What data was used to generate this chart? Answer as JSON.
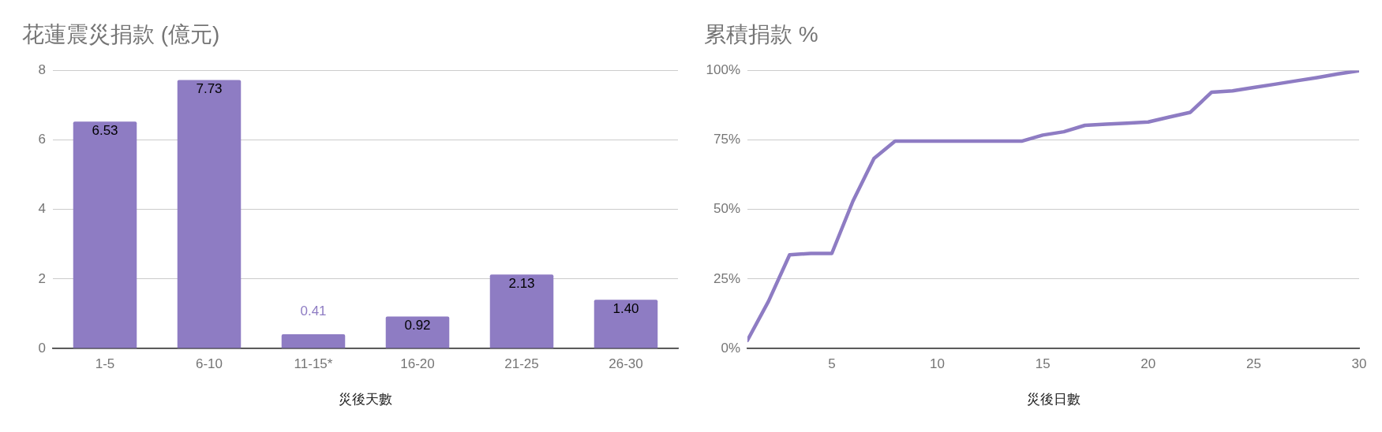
{
  "chart_data": [
    {
      "type": "bar",
      "title": "花蓮震災捐款 (億元)",
      "xlabel": "災後天數",
      "categories": [
        "1-5",
        "6-10",
        "11-15*",
        "16-20",
        "21-25",
        "26-30"
      ],
      "values": [
        6.53,
        7.73,
        0.41,
        0.92,
        2.13,
        1.4
      ],
      "value_labels": [
        "6.53",
        "7.73",
        "0.41",
        "0.92",
        "2.13",
        "1.40"
      ],
      "color": "#8e7cc3",
      "ylim": [
        0,
        8
      ],
      "yticks": [
        0,
        2,
        4,
        6,
        8
      ],
      "grid": "y"
    },
    {
      "type": "line",
      "title": "累積捐款 %",
      "xlabel": "災後日數",
      "x": [
        1,
        2,
        3,
        4,
        5,
        6,
        7,
        8,
        9,
        10,
        11,
        12,
        13,
        14,
        15,
        16,
        17,
        18,
        19,
        20,
        21,
        22,
        23,
        24,
        25,
        26,
        27,
        28,
        29,
        30
      ],
      "values": [
        2.9,
        17,
        33.7,
        34.2,
        34.2,
        53,
        68.4,
        74.6,
        74.6,
        74.6,
        74.6,
        74.6,
        74.6,
        74.6,
        76.8,
        78,
        80.3,
        80.7,
        81.1,
        81.5,
        83.3,
        85,
        92.2,
        92.7,
        93.9,
        95.1,
        96.3,
        97.5,
        98.8,
        100
      ],
      "color": "#8e7cc3",
      "xlim": [
        1,
        30
      ],
      "xticks": [
        5,
        10,
        15,
        20,
        25,
        30
      ],
      "ylim": [
        0,
        100
      ],
      "yticks": [
        {
          "value": 0,
          "label": "0%"
        },
        {
          "value": 25,
          "label": "25%"
        },
        {
          "value": 50,
          "label": "50%"
        },
        {
          "value": 75,
          "label": "75%"
        },
        {
          "value": 100,
          "label": "100%"
        }
      ],
      "grid": "y",
      "marker": "none"
    }
  ]
}
